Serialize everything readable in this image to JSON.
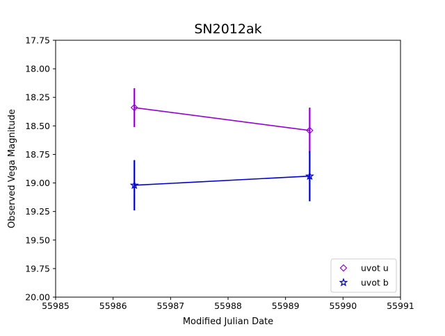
{
  "chart_data": {
    "type": "scatter",
    "title": "SN2012ak",
    "xlabel": "Modified Julian Date",
    "ylabel": "Observed Vega Magnitude",
    "xlim": [
      55985,
      55991
    ],
    "ylim": [
      20.0,
      17.75
    ],
    "y_inverted": true,
    "grid": false,
    "legend_position": "lower-right",
    "xticks": [
      55985,
      55986,
      55987,
      55988,
      55989,
      55990,
      55991
    ],
    "xtick_labels": [
      "55985",
      "55986",
      "55987",
      "55988",
      "55989",
      "55990",
      "55991"
    ],
    "yticks": [
      17.75,
      18.0,
      18.25,
      18.5,
      18.75,
      19.0,
      19.25,
      19.5,
      19.75,
      20.0
    ],
    "ytick_labels": [
      "17.75",
      "18.00",
      "18.25",
      "18.50",
      "18.75",
      "19.00",
      "19.25",
      "19.50",
      "19.75",
      "20.00"
    ],
    "series": [
      {
        "name": "uvot u",
        "color": "#9400D3",
        "marker": "diamond",
        "x": [
          55986.37,
          55989.42
        ],
        "y": [
          18.34,
          18.54
        ],
        "yerr": [
          0.17,
          0.2
        ]
      },
      {
        "name": "uvot b",
        "color": "#0000CD",
        "marker": "star",
        "x": [
          55986.37,
          55989.42
        ],
        "y": [
          19.02,
          18.94
        ],
        "yerr": [
          0.22,
          0.22
        ]
      }
    ]
  }
}
